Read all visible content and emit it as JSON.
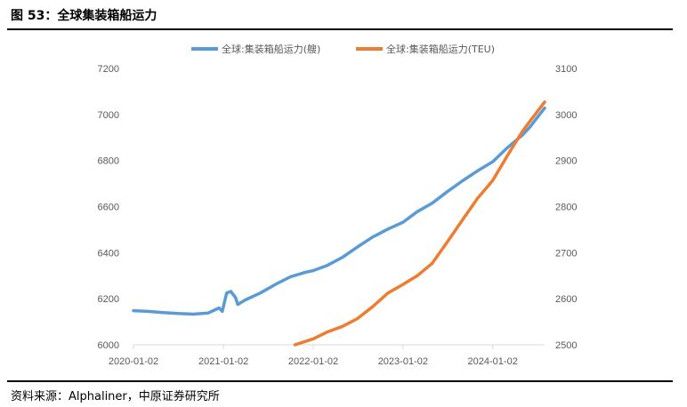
{
  "header": {
    "title": "图 53：全球集装箱船运力"
  },
  "footer": {
    "source": "资料来源：Alphaliner，中原证券研究所"
  },
  "colors": {
    "series_teu": "#ED7D31",
    "series_ships": "#5B9BD5",
    "axis": "#d9d9d9",
    "tick_text": "#595959"
  },
  "chart_data": {
    "type": "line",
    "title": "",
    "xlabel": "",
    "ylabel_left": "",
    "ylabel_right": "",
    "x_ticks": [
      "2020-01-02",
      "2021-01-02",
      "2022-01-02",
      "2023-01-02",
      "2024-01-02"
    ],
    "x_range": [
      "2020-01-02",
      "2024-07-31"
    ],
    "y_left_range": [
      6000,
      7200
    ],
    "y_left_ticks": [
      6000,
      6200,
      6400,
      6600,
      6800,
      7000,
      7200
    ],
    "y_right_range": [
      2500,
      3100
    ],
    "y_right_ticks": [
      2500,
      2600,
      2700,
      2800,
      2900,
      3000,
      3100
    ],
    "grid": false,
    "legend": "top-center",
    "series": [
      {
        "name": "全球:集装箱船运力(艘)",
        "axis": "left",
        "x": [
          "2020-01-02",
          "2020-03-01",
          "2020-05-01",
          "2020-07-01",
          "2020-09-01",
          "2020-11-01",
          "2020-12-15",
          "2020-12-28",
          "2021-01-15",
          "2021-02-01",
          "2021-02-20",
          "2021-03-01",
          "2021-04-01",
          "2021-06-01",
          "2021-08-01",
          "2021-10-01",
          "2021-12-01",
          "2022-01-02",
          "2022-03-01",
          "2022-05-01",
          "2022-07-01",
          "2022-09-01",
          "2022-11-01",
          "2023-01-02",
          "2023-03-01",
          "2023-05-01",
          "2023-07-01",
          "2023-09-01",
          "2023-11-01",
          "2024-01-02",
          "2024-03-01",
          "2024-05-01",
          "2024-06-01",
          "2024-07-31"
        ],
        "values": [
          6148,
          6145,
          6140,
          6136,
          6133,
          6138,
          6160,
          6145,
          6225,
          6232,
          6205,
          6175,
          6195,
          6225,
          6262,
          6295,
          6315,
          6322,
          6345,
          6380,
          6425,
          6468,
          6502,
          6532,
          6578,
          6615,
          6665,
          6712,
          6755,
          6795,
          6855,
          6910,
          6945,
          7028
        ]
      },
      {
        "name": "全球:集装箱船运力(TEU)",
        "axis": "right",
        "x": [
          "2021-10-20",
          "2022-01-02",
          "2022-03-01",
          "2022-05-01",
          "2022-07-01",
          "2022-09-01",
          "2022-11-01",
          "2023-01-02",
          "2023-03-01",
          "2023-05-01",
          "2023-07-01",
          "2023-09-01",
          "2023-11-01",
          "2024-01-02",
          "2024-03-01",
          "2024-05-01",
          "2024-06-01",
          "2024-07-31"
        ],
        "values": [
          2500,
          2513,
          2528,
          2540,
          2557,
          2583,
          2612,
          2631,
          2650,
          2677,
          2723,
          2771,
          2818,
          2857,
          2910,
          2963,
          2985,
          3027
        ]
      }
    ]
  }
}
